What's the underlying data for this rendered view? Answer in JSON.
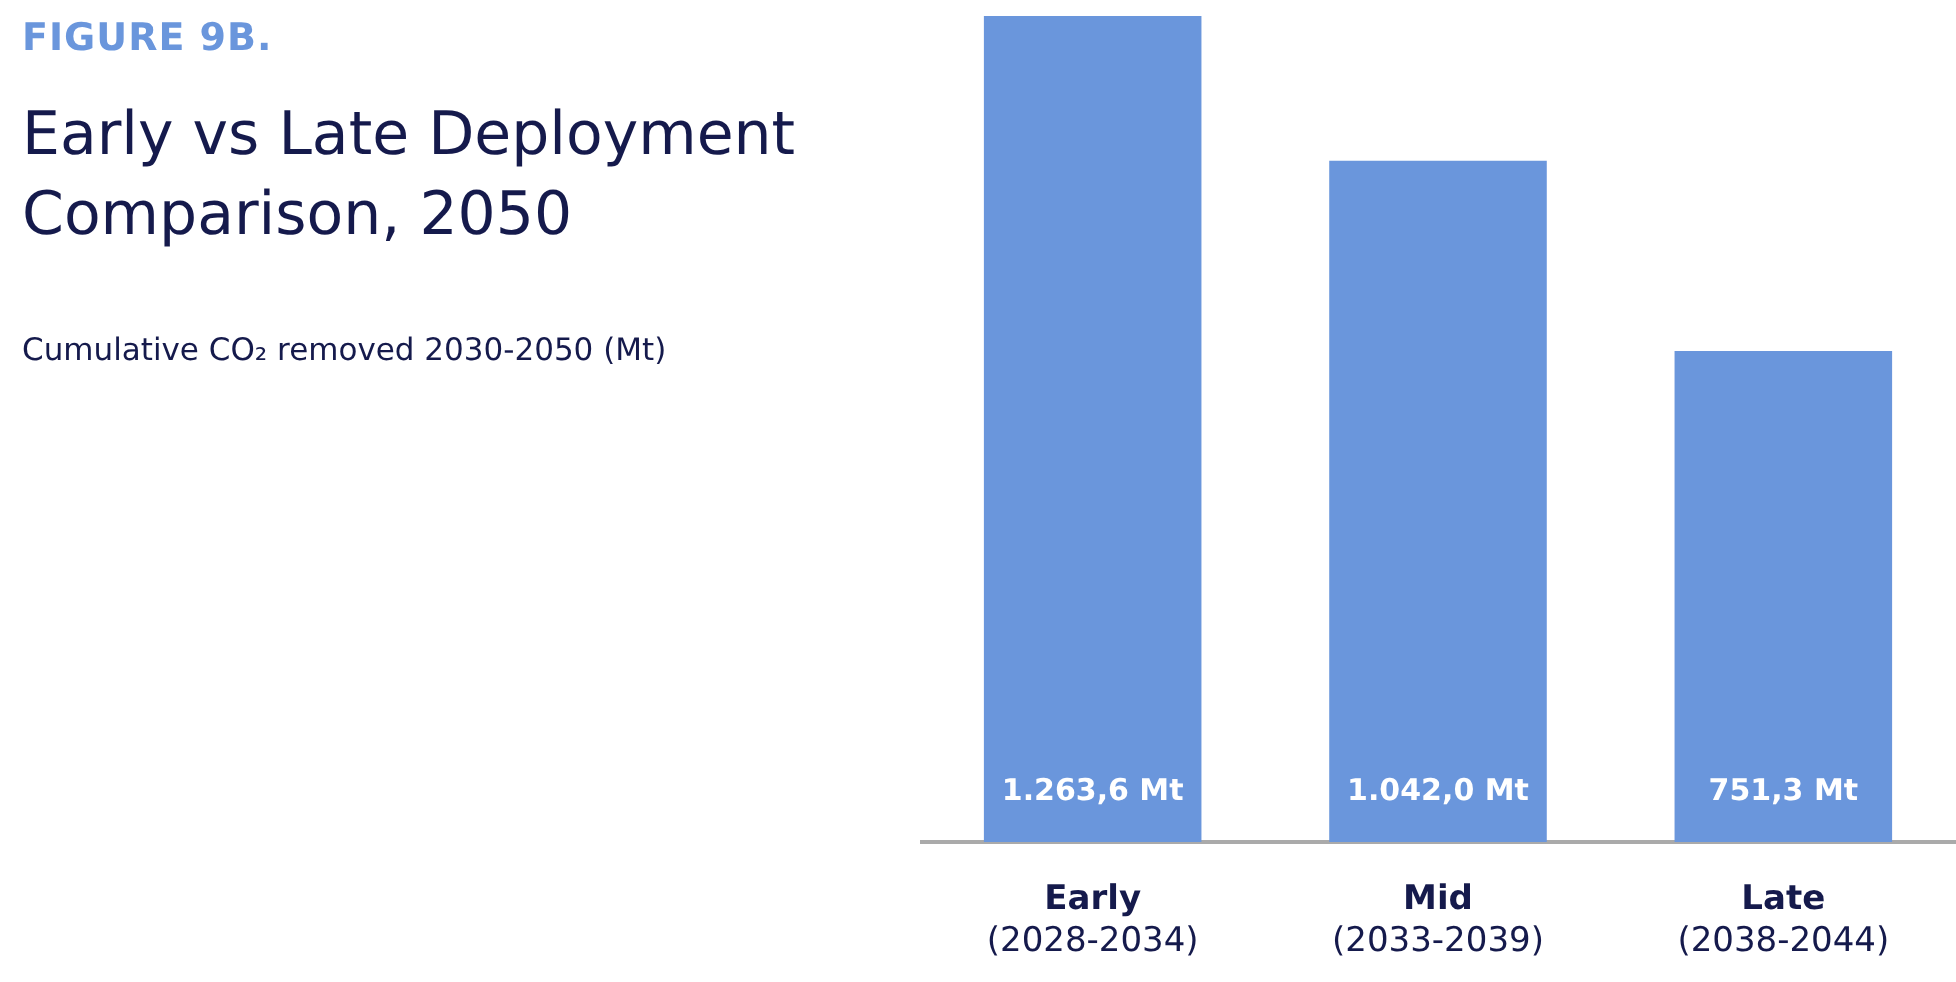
{
  "chart_data": {
    "type": "bar",
    "title": "Early vs Late Deployment Comparison, 2050",
    "subtitle": "Cumulative CO₂ removed 2030-2050 (Mt)",
    "annotations": [
      "FIGURE 9B."
    ],
    "categories": [
      "Early\n(2028-2034)",
      "Mid\n(2033-2039)",
      "Late\n(2038-2044)"
    ],
    "values": [
      1263.6,
      1042.0,
      751.3
    ],
    "value_labels": [
      "1.263,6 Mt",
      "1.042,0 Mt",
      "751,3 Mt"
    ],
    "color": "#6a96dc",
    "grid": false,
    "legend": false
  }
}
